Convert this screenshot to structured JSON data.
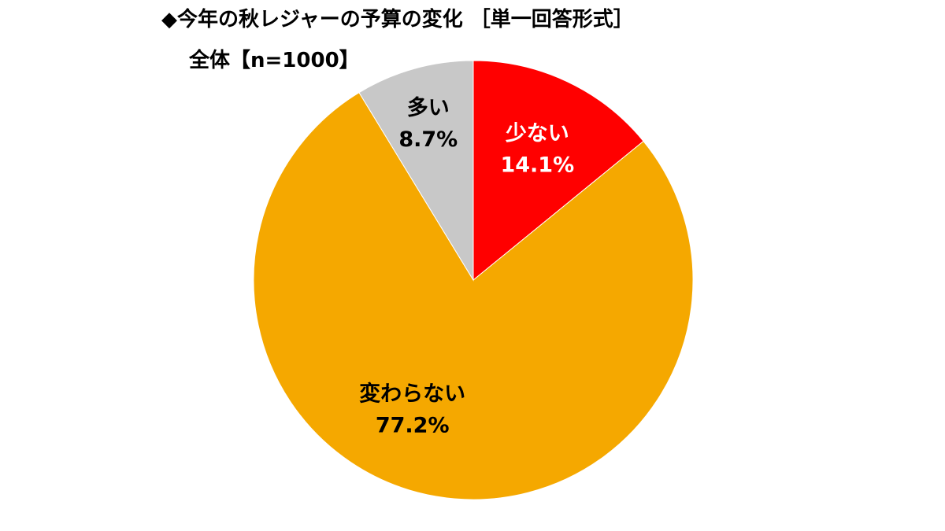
{
  "chart_data": {
    "type": "pie",
    "title": "◆今年の秋レジャーの予算の変化 ［単一回答形式］",
    "subtitle": "全体【n=1000】",
    "slices": [
      {
        "label": "少ない",
        "value": 14.1,
        "value_text": "14.1%",
        "color": "#ff0000",
        "text_color": "#ffffff"
      },
      {
        "label": "変わらない",
        "value": 77.2,
        "value_text": "77.2%",
        "color": "#f5a800",
        "text_color": "#000000"
      },
      {
        "label": "多い",
        "value": 8.7,
        "value_text": "8.7%",
        "color": "#c8c8c8",
        "text_color": "#000000"
      }
    ],
    "start": "12 o'clock",
    "direction": "clockwise"
  }
}
